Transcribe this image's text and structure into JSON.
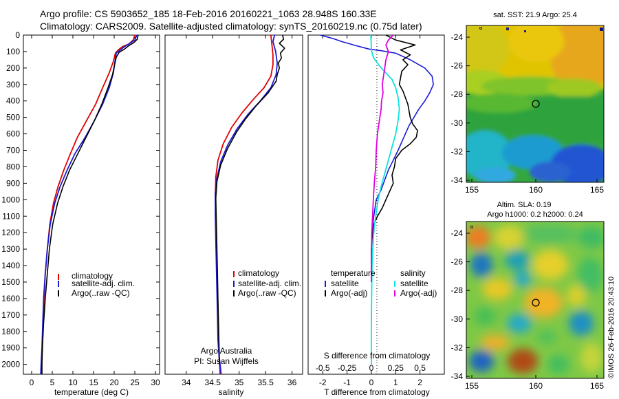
{
  "header": {
    "line1": "Argo profile: CS 5903652_185 18-Feb-2016 20160221_1063 28.948S 160.33E",
    "line2": "Climatology: CARS2009. Satellite-adjusted climatology: synTS_20160219.nc (0.75d later)"
  },
  "colors": {
    "climatology": "#e00000",
    "satellite": "#1a1ad6",
    "argo": "#000000",
    "cyan": "#10e0e0",
    "magenta": "#e000e0"
  },
  "chart_data": [
    {
      "type": "line",
      "id": "temperature",
      "xlabel": "temperature (deg C)",
      "ylabel": "",
      "xlim": [
        -2,
        31
      ],
      "ylim": [
        2060,
        0
      ],
      "xticks": [
        0,
        5,
        10,
        15,
        20,
        25,
        30
      ],
      "yticks": [
        0,
        100,
        200,
        300,
        400,
        500,
        600,
        700,
        800,
        900,
        1000,
        1100,
        1200,
        1300,
        1400,
        1500,
        1600,
        1700,
        1800,
        1900,
        2000
      ],
      "legend": [
        "climatology",
        "satellite-adj. clim.",
        "Argo(..raw -QC)"
      ],
      "legend_placement": "lower-center",
      "series": [
        {
          "name": "climatology",
          "color": "#e00000",
          "width": 1.8,
          "x": [
            25,
            24.6,
            23.5,
            22,
            21,
            20.3,
            19.8,
            18.8,
            17.2,
            15.5,
            13.3,
            11.1,
            9.4,
            7.8,
            6.4,
            5.3,
            4.4,
            3.8,
            3.3,
            3,
            2.8,
            2.6,
            2.4,
            2.3
          ],
          "y": [
            0,
            30,
            55,
            70,
            90,
            110,
            160,
            230,
            320,
            420,
            520,
            620,
            720,
            820,
            920,
            1020,
            1150,
            1300,
            1450,
            1600,
            1750,
            1900,
            2000,
            2060
          ]
        },
        {
          "name": "satellite-adj. clim.",
          "color": "#1a1ad6",
          "width": 1.8,
          "x": [
            25.5,
            25,
            23.5,
            22.5,
            21.5,
            20.5,
            20.2,
            19.8,
            18.8,
            17.2,
            15.2,
            13,
            10.5,
            8.6,
            6.9,
            5.6,
            4.5,
            3.8,
            3.3,
            2.9,
            2.7,
            2.5,
            2.3,
            2.2
          ],
          "y": [
            0,
            30,
            55,
            70,
            90,
            110,
            160,
            230,
            320,
            420,
            520,
            620,
            720,
            820,
            920,
            1020,
            1150,
            1300,
            1450,
            1600,
            1750,
            1900,
            2000,
            2060
          ]
        },
        {
          "name": "Argo(..raw -QC)",
          "color": "#000000",
          "width": 1.6,
          "x": [
            25.8,
            25.6,
            24.8,
            23.5,
            22.5,
            21.2,
            20.5,
            20.1,
            19.6,
            18.5,
            17,
            15.2,
            13.2,
            11.2,
            9.2,
            7.6,
            6.3,
            5.1,
            4.3,
            3.8,
            3.3,
            2.9,
            2.6,
            2.5,
            2.5
          ],
          "y": [
            0,
            25,
            45,
            65,
            85,
            105,
            135,
            180,
            240,
            320,
            420,
            520,
            620,
            720,
            820,
            920,
            1020,
            1150,
            1300,
            1450,
            1600,
            1750,
            1900,
            2000,
            2060
          ]
        }
      ]
    },
    {
      "type": "line",
      "id": "salinity",
      "xlabel": "salinity",
      "xlim": [
        33.6,
        36.2
      ],
      "ylim": [
        2060,
        0
      ],
      "xticks": [
        34,
        34.5,
        35,
        35.5,
        36
      ],
      "legend": [
        "climatology",
        "satellite-adj. clim.",
        "Argo(..raw -QC)"
      ],
      "legend_placement": "lower-right",
      "annotation": [
        "Argo Australia",
        "PI: Susan Wijffels"
      ],
      "series": [
        {
          "name": "climatology",
          "color": "#e00000",
          "width": 1.8,
          "x": [
            35.6,
            35.62,
            35.64,
            35.64,
            35.6,
            35.47,
            35.27,
            35.06,
            34.86,
            34.7,
            34.6,
            34.56,
            34.55,
            34.56,
            34.57,
            34.58,
            34.59,
            34.6,
            34.61,
            34.62,
            34.63,
            34.64
          ],
          "y": [
            0,
            60,
            120,
            180,
            250,
            320,
            390,
            470,
            560,
            660,
            760,
            860,
            960,
            1100,
            1250,
            1400,
            1550,
            1700,
            1850,
            1950,
            2000,
            2060
          ]
        },
        {
          "name": "satellite-adj. clim.",
          "color": "#1a1ad6",
          "width": 1.8,
          "x": [
            35.67,
            35.64,
            35.69,
            35.72,
            35.7,
            35.6,
            35.4,
            35.17,
            34.96,
            34.78,
            34.65,
            34.58,
            34.55,
            34.55,
            34.56,
            34.57,
            34.58,
            34.59,
            34.6,
            34.62,
            34.64,
            34.65,
            34.66
          ],
          "y": [
            0,
            40,
            100,
            170,
            240,
            320,
            400,
            480,
            570,
            670,
            770,
            870,
            960,
            1100,
            1250,
            1400,
            1550,
            1700,
            1850,
            1950,
            2000,
            2030,
            2060
          ]
        },
        {
          "name": "Argo(..raw -QC)",
          "color": "#000000",
          "width": 1.6,
          "x": [
            35.82,
            35.84,
            35.76,
            35.86,
            35.78,
            35.8,
            35.74,
            35.76,
            35.72,
            35.7,
            35.55,
            35.32,
            35.12,
            34.95,
            34.78,
            34.65,
            34.58,
            34.56,
            34.57,
            34.58,
            34.59,
            34.6,
            34.61,
            34.62,
            34.63
          ],
          "y": [
            0,
            25,
            50,
            80,
            110,
            140,
            170,
            200,
            240,
            280,
            350,
            430,
            510,
            590,
            690,
            790,
            890,
            990,
            1150,
            1300,
            1450,
            1600,
            1750,
            1900,
            2000
          ]
        }
      ]
    },
    {
      "type": "line",
      "id": "difference",
      "xlabel": "T difference from climatology",
      "xlabel_top": "S difference from climatology",
      "xlim": [
        -2.6,
        3.0
      ],
      "ylim": [
        2060,
        0
      ],
      "xticks": [
        -2,
        -1,
        0,
        1,
        2
      ],
      "xticks_s": [
        "-0.5",
        "-0.25",
        "0",
        "0.25",
        "0.5"
      ],
      "legend_headers": [
        "temperature",
        "salinity"
      ],
      "legend": [
        "satellite",
        "Argo(-adj)",
        "satellite",
        "Argo(-adj)"
      ],
      "legend_placement": "lower-center",
      "series": [
        {
          "name": "satellite",
          "group": "temperature",
          "color": "#1a1ad6",
          "width": 1.6,
          "x": [
            -2.1,
            -1.6,
            -1.2,
            -0.6,
            -0.1,
            0.4,
            1,
            1.6,
            2.2,
            2.5,
            2.55,
            2.4,
            2.2,
            1.95,
            1.75,
            1.55,
            1.4,
            1.25,
            1.1,
            0.9,
            0.7,
            0.55,
            0.4,
            0.2,
            0.1,
            0.02
          ],
          "y": [
            0,
            20,
            40,
            65,
            85,
            95,
            110,
            150,
            200,
            250,
            300,
            350,
            400,
            450,
            500,
            550,
            600,
            650,
            700,
            760,
            820,
            880,
            940,
            1000,
            1100,
            1200
          ]
        },
        {
          "name": "Argo(-adj)",
          "group": "temperature",
          "color": "#000000",
          "width": 1.6,
          "x": [
            0.6,
            1,
            1.8,
            1.2,
            1.6,
            1.3,
            1.5,
            1.25,
            1.2,
            1.15,
            1.3,
            1.4,
            1.5,
            1.55,
            1.6,
            1.7,
            1.9,
            1.85,
            1.6,
            1.25,
            1.0,
            0.95,
            0.85,
            0.9,
            0.75,
            0.6,
            0.45,
            0.25,
            0.1,
            0.05,
            0,
            0
          ],
          "y": [
            0,
            30,
            60,
            90,
            120,
            150,
            180,
            220,
            260,
            300,
            340,
            380,
            420,
            460,
            500,
            540,
            580,
            620,
            660,
            700,
            750,
            800,
            850,
            900,
            950,
            1000,
            1050,
            1100,
            1150,
            1200,
            1300,
            1400
          ]
        },
        {
          "name": "satellite",
          "group": "salinity",
          "color": "#10e0e0",
          "width": 1.8,
          "x": [
            -0.02,
            -0.01,
            0,
            0.02,
            0.05,
            0.1,
            0.2,
            0.35,
            0.6,
            0.85,
            1.0,
            1.1,
            1.15,
            1.1,
            1.0,
            0.85,
            0.7,
            0.55,
            0.4,
            0.28,
            0.2,
            0.12,
            0.08,
            0.05,
            0.03,
            0.02,
            0.01,
            0,
            0
          ],
          "y": [
            0,
            40,
            80,
            100,
            120,
            140,
            160,
            190,
            230,
            270,
            320,
            380,
            450,
            520,
            600,
            680,
            760,
            840,
            920,
            1000,
            1080,
            1160,
            1240,
            1320,
            1400,
            1500,
            1600,
            1800,
            2000
          ]
        },
        {
          "name": "Argo(-adj)",
          "group": "salinity",
          "color": "#e000e0",
          "width": 1.8,
          "x": [
            0.9,
            0.7,
            0.6,
            0.7,
            0.6,
            0.55,
            0.5,
            0.45,
            0.48,
            0.42,
            0.4,
            0.35,
            0.3,
            0.25,
            0.2,
            0.18,
            0.12,
            0.08,
            0.05,
            0.02,
            0,
            0
          ],
          "y": [
            0,
            30,
            60,
            100,
            150,
            200,
            250,
            300,
            350,
            400,
            450,
            500,
            550,
            600,
            700,
            800,
            900,
            1000,
            1100,
            1200,
            1350,
            1500
          ]
        }
      ]
    }
  ],
  "map_sst": {
    "title": "sat. SST: 21.9 Argo: 25.4",
    "xticks": [
      "155",
      "160",
      "165"
    ],
    "yticks": [
      "-24",
      "-26",
      "-28",
      "-30",
      "-32",
      "-34"
    ],
    "float_marker": {
      "lon": 160.33,
      "lat": -28.95
    }
  },
  "map_sla": {
    "title_lines": [
      "Altim. SLA: 0.19",
      "Argo h1000: 0.2 h2000: 0.24"
    ],
    "xticks": [
      "155",
      "160",
      "165"
    ],
    "yticks": [
      "-24",
      "-26",
      "-28",
      "-30",
      "-32",
      "-34"
    ],
    "float_marker": {
      "lon": 160.33,
      "lat": -28.95
    }
  },
  "footer": {
    "credit": "©IMOS 26-Feb-2016 20:43:10"
  }
}
